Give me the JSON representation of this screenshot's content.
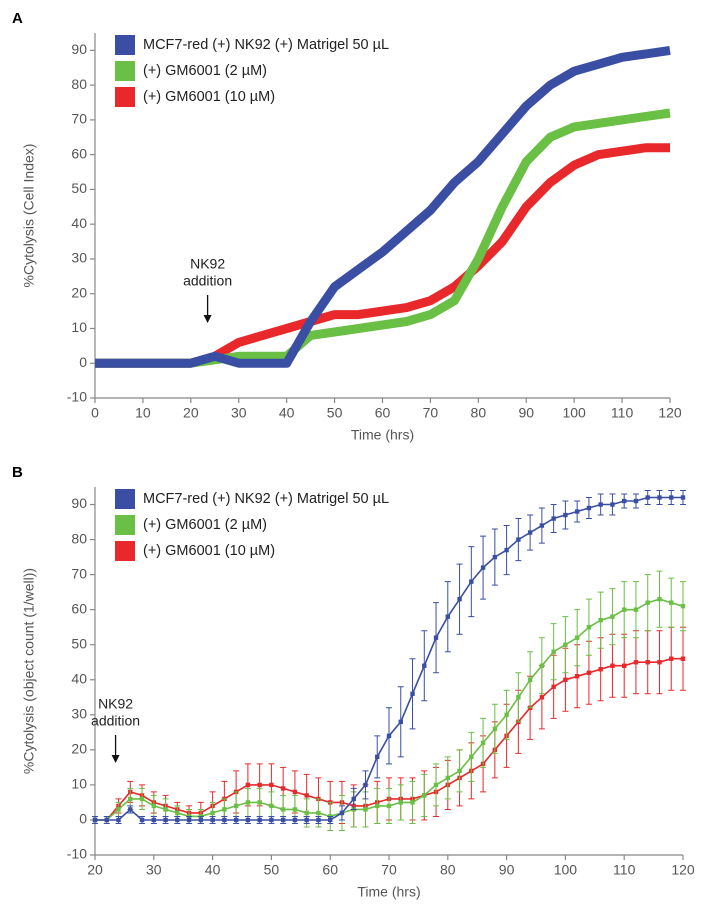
{
  "chart_data": [
    {
      "type": "band-line",
      "panel": "A",
      "xlabel": "Time (hrs)",
      "ylabel": "%Cytolysis (Cell Index)",
      "annotation": [
        "NK92",
        "addition"
      ],
      "legend": "upper left",
      "xlim": [
        0,
        120
      ],
      "xticks": [
        0,
        10,
        20,
        30,
        40,
        50,
        60,
        70,
        80,
        90,
        100,
        110,
        120
      ],
      "ylim": [
        -10,
        95
      ],
      "yticks": [
        -10,
        0,
        10,
        20,
        30,
        40,
        50,
        60,
        70,
        80,
        90
      ],
      "x": [
        0,
        5,
        10,
        15,
        20,
        25,
        30,
        35,
        40,
        45,
        50,
        55,
        60,
        65,
        70,
        75,
        80,
        85,
        90,
        95,
        100,
        105,
        110,
        115,
        120
      ],
      "series": [
        {
          "name": "MCF7-red (+) NK92 (+) Matrigel 50 µL",
          "color": "#3a4fa3",
          "values": [
            0,
            0,
            0,
            0,
            0,
            2,
            0,
            0,
            0,
            12,
            22,
            27,
            32,
            38,
            44,
            52,
            58,
            66,
            74,
            80,
            84,
            86,
            88,
            89,
            90
          ]
        },
        {
          "name": "(+) GM6001 (2 µM)",
          "color": "#6abf45",
          "values": [
            0,
            0,
            0,
            0,
            0,
            1,
            2,
            2,
            2,
            8,
            9,
            10,
            11,
            12,
            14,
            18,
            30,
            45,
            58,
            65,
            68,
            69,
            70,
            71,
            72
          ]
        },
        {
          "name": "(+) GM6001 (10 µM)",
          "color": "#e8282a",
          "values": [
            0,
            0,
            0,
            0,
            0,
            2,
            6,
            8,
            10,
            12,
            14,
            14,
            15,
            16,
            18,
            22,
            28,
            35,
            45,
            52,
            57,
            60,
            61,
            62,
            62
          ]
        }
      ]
    },
    {
      "type": "errorbar-line",
      "panel": "B",
      "xlabel": "Time (hrs)",
      "ylabel": "%Cytolysis (object count (1/well))",
      "annotation": [
        "NK92",
        "addition"
      ],
      "legend": "upper left",
      "xlim": [
        20,
        120
      ],
      "xticks": [
        20,
        30,
        40,
        50,
        60,
        70,
        80,
        90,
        100,
        110,
        120
      ],
      "ylim": [
        -10,
        95
      ],
      "yticks": [
        -10,
        0,
        10,
        20,
        30,
        40,
        50,
        60,
        70,
        80,
        90
      ],
      "x": [
        20,
        22,
        24,
        26,
        28,
        30,
        32,
        34,
        36,
        38,
        40,
        42,
        44,
        46,
        48,
        50,
        52,
        54,
        56,
        58,
        60,
        62,
        64,
        66,
        68,
        70,
        72,
        74,
        76,
        78,
        80,
        82,
        84,
        86,
        88,
        90,
        92,
        94,
        96,
        98,
        100,
        102,
        104,
        106,
        108,
        110,
        112,
        114,
        116,
        118,
        120
      ],
      "series": [
        {
          "name": "MCF7-red (+) NK92 (+) Matrigel 50 µL",
          "color": "#3a4fa3",
          "values": [
            0,
            0,
            0,
            3,
            0,
            0,
            0,
            0,
            0,
            0,
            0,
            0,
            0,
            0,
            0,
            0,
            0,
            0,
            0,
            0,
            0,
            2,
            6,
            10,
            18,
            24,
            28,
            36,
            44,
            52,
            58,
            63,
            68,
            72,
            75,
            77,
            80,
            82,
            84,
            86,
            87,
            88,
            89,
            90,
            90,
            91,
            91,
            92,
            92,
            92,
            92
          ],
          "errors": [
            1,
            1,
            1,
            1,
            1,
            1,
            1,
            1,
            1,
            1,
            1,
            1,
            1,
            1,
            1,
            1,
            1,
            1,
            1,
            1,
            1,
            2,
            3,
            4,
            6,
            8,
            10,
            10,
            10,
            10,
            10,
            10,
            10,
            9,
            8,
            7,
            6,
            5,
            5,
            4,
            4,
            3,
            3,
            3,
            3,
            2,
            2,
            2,
            2,
            2,
            2
          ]
        },
        {
          "name": "(+) GM6001 (2 µM)",
          "color": "#6abf45",
          "values": [
            0,
            0,
            3,
            6,
            6,
            4,
            3,
            2,
            1,
            1,
            2,
            3,
            4,
            5,
            5,
            4,
            3,
            3,
            2,
            2,
            1,
            2,
            3,
            3,
            4,
            4,
            5,
            5,
            7,
            10,
            12,
            14,
            18,
            22,
            26,
            30,
            35,
            40,
            44,
            48,
            50,
            52,
            55,
            57,
            58,
            60,
            60,
            62,
            63,
            62,
            61
          ],
          "errors": [
            0,
            0,
            2,
            3,
            3,
            3,
            3,
            2,
            2,
            2,
            3,
            3,
            4,
            4,
            4,
            4,
            4,
            4,
            4,
            4,
            4,
            5,
            5,
            5,
            5,
            5,
            5,
            6,
            6,
            6,
            6,
            6,
            7,
            7,
            7,
            7,
            7,
            8,
            8,
            8,
            8,
            8,
            8,
            8,
            8,
            8,
            8,
            8,
            8,
            7,
            7
          ]
        },
        {
          "name": "(+) GM6001 (10 µM)",
          "color": "#e8282a",
          "values": [
            0,
            0,
            4,
            8,
            7,
            5,
            4,
            3,
            2,
            2,
            4,
            6,
            8,
            10,
            10,
            10,
            9,
            8,
            7,
            6,
            5,
            5,
            4,
            4,
            5,
            6,
            6,
            6,
            7,
            8,
            10,
            12,
            14,
            16,
            20,
            24,
            28,
            32,
            35,
            38,
            40,
            41,
            42,
            43,
            44,
            44,
            45,
            45,
            45,
            46,
            46
          ],
          "errors": [
            0,
            0,
            2,
            3,
            3,
            3,
            3,
            2,
            2,
            3,
            4,
            5,
            6,
            6,
            6,
            6,
            6,
            6,
            6,
            6,
            6,
            6,
            6,
            6,
            6,
            6,
            6,
            6,
            7,
            7,
            7,
            8,
            8,
            8,
            8,
            9,
            9,
            9,
            9,
            9,
            9,
            9,
            9,
            9,
            9,
            9,
            9,
            9,
            9,
            9,
            9
          ]
        }
      ]
    }
  ]
}
